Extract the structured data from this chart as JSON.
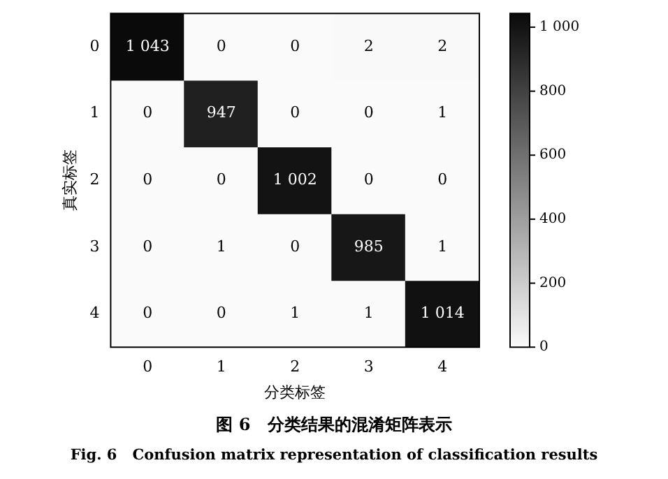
{
  "chart_data": {
    "type": "heatmap",
    "title": "图 6　分类结果的混淆矩阵表示",
    "subtitle": "Fig. 6　Confusion matrix representation of classification results",
    "xlabel": "分类标签",
    "ylabel": "真实标签",
    "categories": [
      "0",
      "1",
      "2",
      "3",
      "4"
    ],
    "y_categories": [
      "0",
      "1",
      "2",
      "3",
      "4"
    ],
    "cells": [
      [
        1043,
        0,
        0,
        2,
        2
      ],
      [
        0,
        947,
        0,
        0,
        1
      ],
      [
        0,
        0,
        1002,
        0,
        0
      ],
      [
        0,
        1,
        0,
        985,
        1
      ],
      [
        0,
        0,
        1,
        1,
        1014
      ]
    ],
    "cell_labels": [
      [
        "1 043",
        "0",
        "0",
        "2",
        "2"
      ],
      [
        "0",
        "947",
        "0",
        "0",
        "1"
      ],
      [
        "0",
        "0",
        "1 002",
        "0",
        "0"
      ],
      [
        "0",
        "1",
        "0",
        "985",
        "1"
      ],
      [
        "0",
        "0",
        "1",
        "1",
        "1 014"
      ]
    ],
    "clim": [
      0,
      1043
    ],
    "cticks": [
      0,
      200,
      400,
      600,
      800,
      {
        "value": 1000,
        "label": "1 000"
      }
    ]
  }
}
